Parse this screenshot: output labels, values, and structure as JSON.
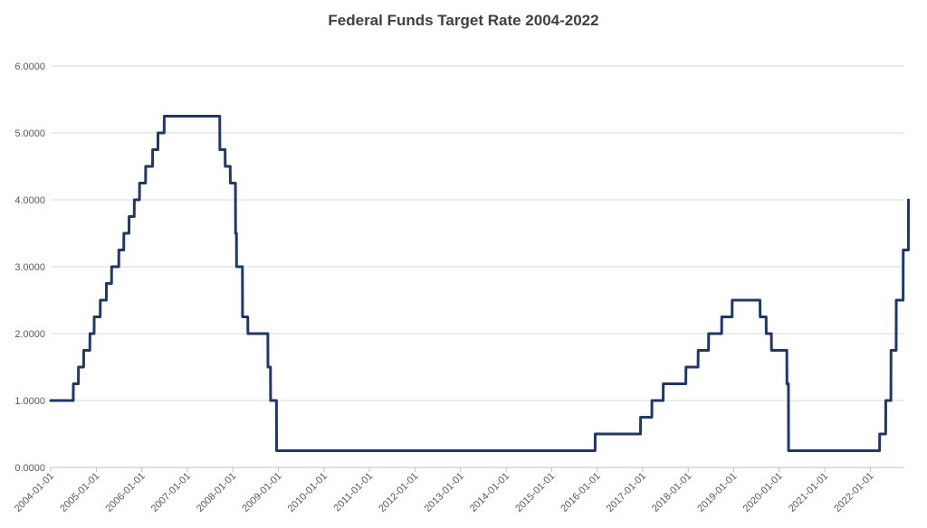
{
  "chart_data": {
    "type": "line",
    "title": "Federal Funds Target Rate 2004-2022",
    "xlabel": "",
    "ylabel": "",
    "x_type": "date",
    "xlim": [
      "2004-01-01",
      "2022-10-01"
    ],
    "ylim": [
      0,
      6
    ],
    "y_ticks": [
      0,
      1,
      2,
      3,
      4,
      5,
      6
    ],
    "y_tick_labels": [
      "0.0000",
      "1.0000",
      "2.0000",
      "3.0000",
      "4.0000",
      "5.0000",
      "6.0000"
    ],
    "x_tick_labels": [
      "2004-01-01",
      "2005-01-01",
      "2006-01-01",
      "2007-01-01",
      "2008-01-01",
      "2009-01-01",
      "2010-01-01",
      "2011-01-01",
      "2012-01-01",
      "2013-01-01",
      "2014-01-01",
      "2015-01-01",
      "2016-01-01",
      "2017-01-01",
      "2018-01-01",
      "2019-01-01",
      "2020-01-01",
      "2021-01-01",
      "2022-01-01"
    ],
    "grid": true,
    "legend": "none",
    "series": [
      {
        "color": "#203864",
        "points": [
          [
            "2004-01-01",
            1.0
          ],
          [
            "2004-06-30",
            1.0
          ],
          [
            "2004-07-01",
            1.25
          ],
          [
            "2004-08-10",
            1.25
          ],
          [
            "2004-08-11",
            1.5
          ],
          [
            "2004-09-21",
            1.5
          ],
          [
            "2004-09-22",
            1.75
          ],
          [
            "2004-11-10",
            1.75
          ],
          [
            "2004-11-11",
            2.0
          ],
          [
            "2004-12-14",
            2.0
          ],
          [
            "2004-12-15",
            2.25
          ],
          [
            "2005-02-01",
            2.25
          ],
          [
            "2005-02-02",
            2.5
          ],
          [
            "2005-03-22",
            2.5
          ],
          [
            "2005-03-23",
            2.75
          ],
          [
            "2005-05-03",
            2.75
          ],
          [
            "2005-05-04",
            3.0
          ],
          [
            "2005-06-30",
            3.0
          ],
          [
            "2005-07-01",
            3.25
          ],
          [
            "2005-08-09",
            3.25
          ],
          [
            "2005-08-10",
            3.5
          ],
          [
            "2005-09-20",
            3.5
          ],
          [
            "2005-09-21",
            3.75
          ],
          [
            "2005-11-01",
            3.75
          ],
          [
            "2005-11-02",
            4.0
          ],
          [
            "2005-12-13",
            4.0
          ],
          [
            "2005-12-14",
            4.25
          ],
          [
            "2006-01-31",
            4.25
          ],
          [
            "2006-02-01",
            4.5
          ],
          [
            "2006-03-28",
            4.5
          ],
          [
            "2006-03-29",
            4.75
          ],
          [
            "2006-05-10",
            4.75
          ],
          [
            "2006-05-11",
            5.0
          ],
          [
            "2006-06-29",
            5.0
          ],
          [
            "2006-06-30",
            5.25
          ],
          [
            "2007-09-18",
            5.25
          ],
          [
            "2007-09-19",
            4.75
          ],
          [
            "2007-10-31",
            4.75
          ],
          [
            "2007-11-01",
            4.5
          ],
          [
            "2007-12-11",
            4.5
          ],
          [
            "2007-12-12",
            4.25
          ],
          [
            "2008-01-22",
            4.25
          ],
          [
            "2008-01-23",
            3.5
          ],
          [
            "2008-01-30",
            3.5
          ],
          [
            "2008-01-31",
            3.0
          ],
          [
            "2008-03-18",
            3.0
          ],
          [
            "2008-03-19",
            2.25
          ],
          [
            "2008-04-30",
            2.25
          ],
          [
            "2008-05-01",
            2.0
          ],
          [
            "2008-10-08",
            2.0
          ],
          [
            "2008-10-09",
            1.5
          ],
          [
            "2008-10-29",
            1.5
          ],
          [
            "2008-10-30",
            1.0
          ],
          [
            "2008-12-16",
            1.0
          ],
          [
            "2008-12-17",
            0.25
          ],
          [
            "2015-12-16",
            0.25
          ],
          [
            "2015-12-17",
            0.5
          ],
          [
            "2016-12-14",
            0.5
          ],
          [
            "2016-12-15",
            0.75
          ],
          [
            "2017-03-15",
            0.75
          ],
          [
            "2017-03-16",
            1.0
          ],
          [
            "2017-06-14",
            1.0
          ],
          [
            "2017-06-15",
            1.25
          ],
          [
            "2017-12-13",
            1.25
          ],
          [
            "2017-12-14",
            1.5
          ],
          [
            "2018-03-21",
            1.5
          ],
          [
            "2018-03-22",
            1.75
          ],
          [
            "2018-06-13",
            1.75
          ],
          [
            "2018-06-14",
            2.0
          ],
          [
            "2018-09-26",
            2.0
          ],
          [
            "2018-09-27",
            2.25
          ],
          [
            "2018-12-19",
            2.25
          ],
          [
            "2018-12-20",
            2.5
          ],
          [
            "2019-07-31",
            2.5
          ],
          [
            "2019-08-01",
            2.25
          ],
          [
            "2019-09-18",
            2.25
          ],
          [
            "2019-09-19",
            2.0
          ],
          [
            "2019-10-30",
            2.0
          ],
          [
            "2019-10-31",
            1.75
          ],
          [
            "2020-03-02",
            1.75
          ],
          [
            "2020-03-03",
            1.25
          ],
          [
            "2020-03-15",
            1.25
          ],
          [
            "2020-03-16",
            0.25
          ],
          [
            "2022-03-16",
            0.25
          ],
          [
            "2022-03-17",
            0.5
          ],
          [
            "2022-05-04",
            0.5
          ],
          [
            "2022-05-05",
            1.0
          ],
          [
            "2022-06-15",
            1.0
          ],
          [
            "2022-06-16",
            1.75
          ],
          [
            "2022-07-27",
            1.75
          ],
          [
            "2022-07-28",
            2.5
          ],
          [
            "2022-09-21",
            2.5
          ],
          [
            "2022-09-22",
            3.25
          ],
          [
            "2022-11-02",
            3.25
          ],
          [
            "2022-11-03",
            4.0
          ]
        ]
      }
    ]
  }
}
